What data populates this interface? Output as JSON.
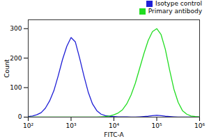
{
  "chart_data": {
    "type": "line",
    "x_label": "FITC-A",
    "y_label": "Count",
    "log": "x",
    "legend": "top-right",
    "grid": false,
    "xlim": [
      100,
      1000000
    ],
    "xticks": [
      {
        "value": 100,
        "label": "10²"
      },
      {
        "value": 1000,
        "label": "10³"
      },
      {
        "value": 10000,
        "label": "10⁴"
      },
      {
        "value": 100000,
        "label": "10⁵"
      },
      {
        "value": 1000000,
        "label": "10⁶"
      }
    ],
    "ylim": [
      0,
      330
    ],
    "yticks": [
      0,
      100,
      200,
      300
    ],
    "x": [
      100,
      126,
      158,
      200,
      251,
      316,
      398,
      501,
      631,
      794,
      1000,
      1259,
      1585,
      1995,
      2512,
      3162,
      3981,
      5012,
      6310,
      7943,
      10000,
      12589,
      15849,
      19953,
      25119,
      31623,
      39811,
      50119,
      63096,
      79433,
      100000,
      125893,
      158489,
      199526,
      251189,
      316228,
      398107,
      501187,
      630957,
      794328,
      1000000
    ],
    "series": [
      {
        "name": "Isotype control",
        "color": "#1f1fd6",
        "values": [
          2,
          4,
          8,
          15,
          30,
          55,
          90,
          140,
          195,
          240,
          270,
          255,
          200,
          140,
          85,
          45,
          22,
          10,
          5,
          3,
          2,
          1,
          1,
          1,
          0,
          0,
          1,
          2,
          3,
          5,
          6,
          5,
          3,
          2,
          1,
          0,
          0,
          0,
          0,
          0,
          0
        ]
      },
      {
        "name": "Primary antibody",
        "color": "#22dd22",
        "values": [
          0,
          0,
          0,
          0,
          0,
          0,
          0,
          0,
          0,
          0,
          0,
          0,
          0,
          0,
          0,
          0,
          0,
          1,
          2,
          4,
          8,
          14,
          25,
          45,
          75,
          115,
          165,
          215,
          260,
          290,
          300,
          280,
          230,
          160,
          95,
          50,
          22,
          10,
          4,
          2,
          1
        ]
      }
    ]
  }
}
